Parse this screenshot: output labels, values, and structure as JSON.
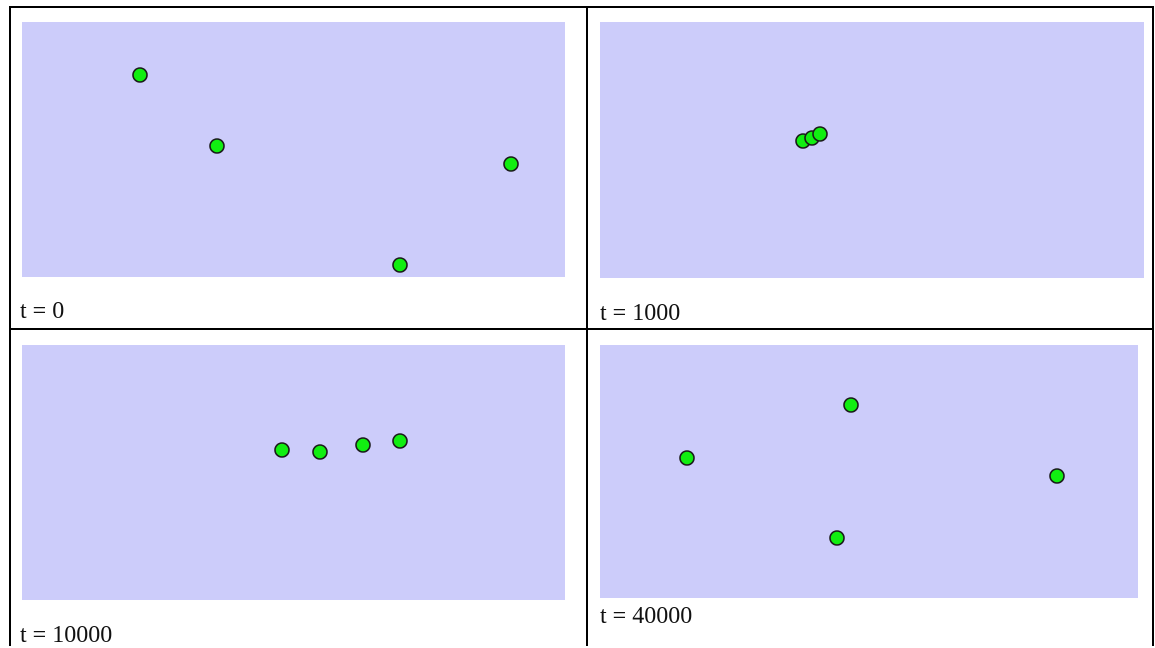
{
  "panels": [
    {
      "caption": "t = 0",
      "points": [
        [
          140,
          75
        ],
        [
          217,
          146
        ],
        [
          511,
          164
        ],
        [
          400,
          265
        ]
      ]
    },
    {
      "caption": "t = 1000",
      "points": [
        [
          803,
          141
        ],
        [
          812,
          138
        ],
        [
          820,
          134
        ]
      ]
    },
    {
      "caption": "t = 10000",
      "points": [
        [
          282,
          450
        ],
        [
          320,
          452
        ],
        [
          363,
          445
        ],
        [
          400,
          441
        ]
      ]
    },
    {
      "caption": "t = 40000",
      "points": [
        [
          851,
          405
        ],
        [
          687,
          458
        ],
        [
          1057,
          476
        ],
        [
          837,
          538
        ]
      ]
    }
  ],
  "colors": {
    "canvas": "#ccccfa",
    "dot_fill": "#11ee11",
    "dot_stroke": "#1a1a1a"
  }
}
